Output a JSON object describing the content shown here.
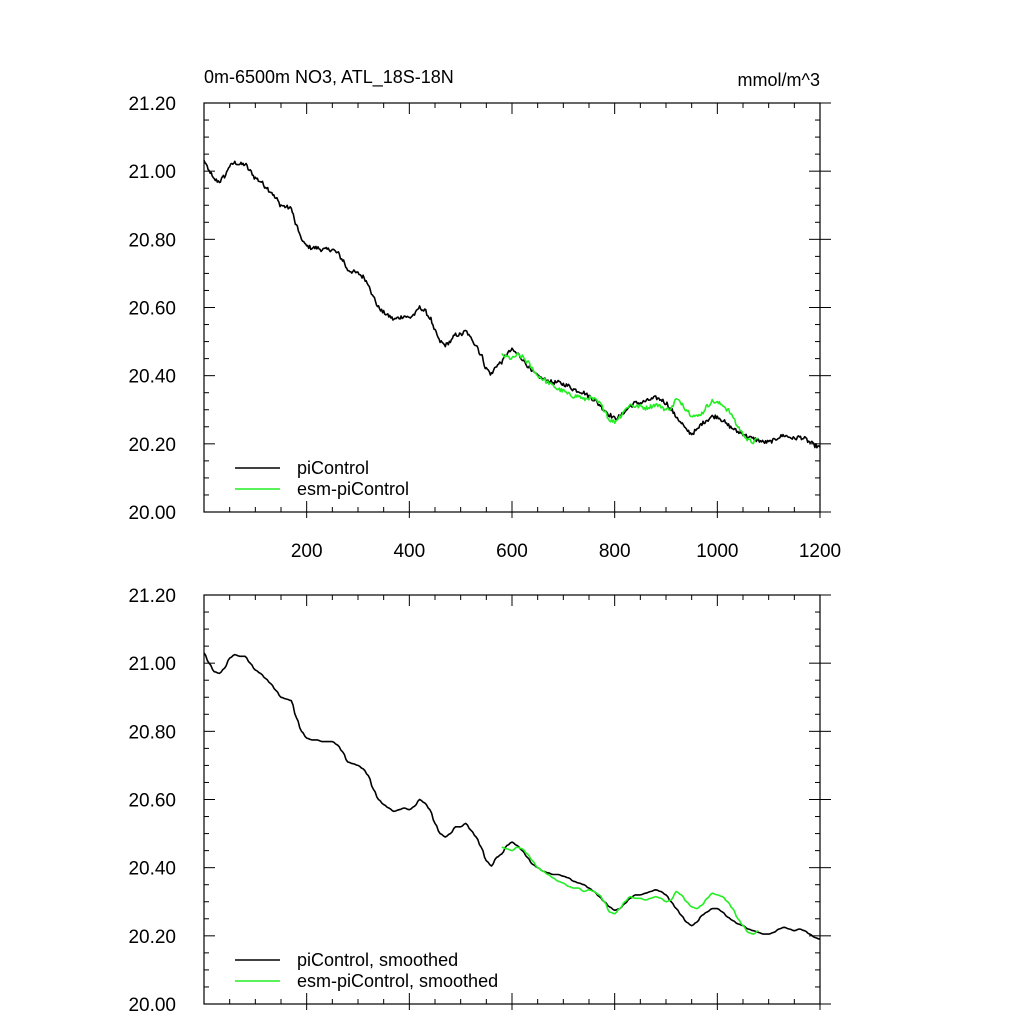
{
  "figure": {
    "title_left": "0m-6500m NO3, ATL_18S-18N",
    "title_right": "mmol/m^3"
  },
  "colors": {
    "piControl": "#000000",
    "esm": "#22ee22"
  },
  "chart_data": [
    {
      "type": "line",
      "title": "0m-6500m NO3, ATL_18S-18N",
      "units": "mmol/m^3",
      "xlim": [
        0,
        1200
      ],
      "ylim": [
        20.0,
        21.2
      ],
      "x_ticks": [
        200,
        400,
        600,
        800,
        1000,
        1200
      ],
      "x_tick_labels": [
        "200",
        "400",
        "600",
        "800",
        "1000",
        "1200"
      ],
      "y_ticks": [
        20.0,
        20.2,
        20.4,
        20.6,
        20.8,
        21.0,
        21.2
      ],
      "y_tick_labels": [
        "20.00",
        "20.20",
        "20.40",
        "20.60",
        "20.80",
        "21.00",
        "21.20"
      ],
      "legend_position": "bottom-left",
      "grid": false,
      "series": [
        {
          "name": "piControl",
          "color": "#000000",
          "x": [
            0,
            10,
            20,
            30,
            40,
            50,
            60,
            70,
            80,
            90,
            100,
            110,
            120,
            130,
            140,
            150,
            160,
            170,
            180,
            190,
            200,
            210,
            220,
            230,
            240,
            250,
            260,
            270,
            280,
            290,
            300,
            310,
            320,
            330,
            340,
            350,
            360,
            370,
            380,
            390,
            400,
            410,
            420,
            430,
            440,
            450,
            460,
            470,
            480,
            490,
            500,
            510,
            520,
            530,
            540,
            550,
            560,
            570,
            580,
            590,
            600,
            610,
            620,
            630,
            640,
            650,
            660,
            670,
            680,
            690,
            700,
            710,
            720,
            730,
            740,
            750,
            760,
            770,
            780,
            790,
            800,
            810,
            820,
            830,
            840,
            850,
            860,
            870,
            880,
            890,
            900,
            910,
            920,
            930,
            940,
            950,
            960,
            970,
            980,
            990,
            1000,
            1010,
            1020,
            1030,
            1040,
            1050,
            1060,
            1070,
            1080,
            1090,
            1100,
            1110,
            1120,
            1130,
            1140,
            1150,
            1160,
            1170,
            1180,
            1190,
            1200
          ],
          "y": [
            21.03,
            21.0,
            20.975,
            20.97,
            20.985,
            21.015,
            21.025,
            21.02,
            21.02,
            21.0,
            20.98,
            20.97,
            20.955,
            20.94,
            20.92,
            20.9,
            20.895,
            20.89,
            20.84,
            20.8,
            20.78,
            20.775,
            20.775,
            20.77,
            20.77,
            20.77,
            20.76,
            20.74,
            20.71,
            20.705,
            20.7,
            20.69,
            20.67,
            20.63,
            20.6,
            20.585,
            20.575,
            20.565,
            20.57,
            20.575,
            20.57,
            20.58,
            20.6,
            20.59,
            20.57,
            20.53,
            20.5,
            20.49,
            20.5,
            20.52,
            20.52,
            20.53,
            20.51,
            20.49,
            20.46,
            20.42,
            20.405,
            20.43,
            20.44,
            20.465,
            20.475,
            20.465,
            20.45,
            20.43,
            20.41,
            20.4,
            20.39,
            20.385,
            20.38,
            20.38,
            20.375,
            20.37,
            20.36,
            20.355,
            20.35,
            20.34,
            20.33,
            20.315,
            20.3,
            20.285,
            20.275,
            20.28,
            20.295,
            20.31,
            20.32,
            20.32,
            20.325,
            20.33,
            20.335,
            20.33,
            20.32,
            20.3,
            20.28,
            20.26,
            20.24,
            20.23,
            20.24,
            20.26,
            20.27,
            20.28,
            20.28,
            20.27,
            20.255,
            20.245,
            20.235,
            20.23,
            20.22,
            20.215,
            20.21,
            20.205,
            20.205,
            20.21,
            20.22,
            20.225,
            20.22,
            20.215,
            20.22,
            20.215,
            20.205,
            20.195,
            20.19
          ]
        },
        {
          "name": "esm-piControl",
          "color": "#22ee22",
          "x": [
            580,
            590,
            600,
            610,
            620,
            630,
            640,
            650,
            660,
            670,
            680,
            690,
            700,
            710,
            720,
            730,
            740,
            750,
            760,
            770,
            780,
            790,
            800,
            810,
            820,
            830,
            840,
            850,
            860,
            870,
            880,
            890,
            900,
            910,
            920,
            930,
            940,
            950,
            960,
            970,
            980,
            990,
            1000,
            1010,
            1020,
            1030,
            1040,
            1050,
            1060,
            1070,
            1080
          ],
          "y": [
            20.46,
            20.455,
            20.45,
            20.46,
            20.455,
            20.44,
            20.42,
            20.4,
            20.39,
            20.38,
            20.37,
            20.36,
            20.355,
            20.345,
            20.34,
            20.34,
            20.33,
            20.335,
            20.33,
            20.32,
            20.3,
            20.27,
            20.265,
            20.28,
            20.3,
            20.315,
            20.31,
            20.31,
            20.305,
            20.31,
            20.315,
            20.31,
            20.3,
            20.305,
            20.33,
            20.32,
            20.3,
            20.285,
            20.28,
            20.29,
            20.31,
            20.325,
            20.32,
            20.315,
            20.3,
            20.28,
            20.25,
            20.23,
            20.21,
            20.205,
            20.215
          ]
        }
      ]
    },
    {
      "type": "line",
      "xlim": [
        0,
        1200
      ],
      "ylim": [
        20.0,
        21.2
      ],
      "x_ticks": [
        200,
        400,
        600,
        800,
        1000,
        1200
      ],
      "y_ticks": [
        20.0,
        20.2,
        20.4,
        20.6,
        20.8,
        21.0,
        21.2
      ],
      "y_tick_labels": [
        "20.00",
        "20.20",
        "20.40",
        "20.60",
        "20.80",
        "21.00",
        "21.20"
      ],
      "legend_position": "bottom-left",
      "grid": false,
      "series": [
        {
          "name": "piControl, smoothed",
          "color": "#000000",
          "smoothed_from": 0
        },
        {
          "name": "esm-piControl, smoothed",
          "color": "#22ee22",
          "smoothed_from": 1
        }
      ]
    }
  ]
}
